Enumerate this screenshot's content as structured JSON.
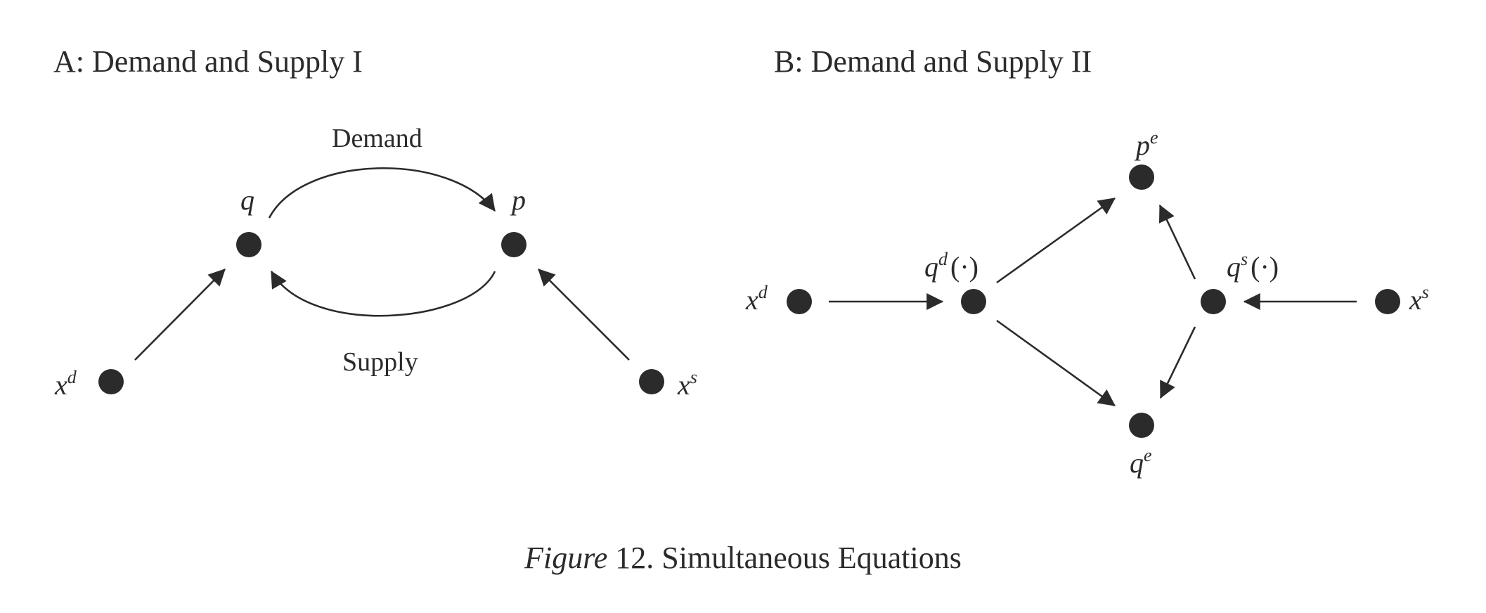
{
  "panel_a": {
    "title": "A: Demand and Supply I",
    "nodes": {
      "q": {
        "base": "q",
        "sup": ""
      },
      "p": {
        "base": "p",
        "sup": ""
      },
      "xd": {
        "base": "x",
        "sup": "d"
      },
      "xs": {
        "base": "x",
        "sup": "s"
      }
    },
    "edge_labels": {
      "demand": "Demand",
      "supply": "Supply"
    }
  },
  "panel_b": {
    "title": "B: Demand and Supply II",
    "nodes": {
      "xd": {
        "base": "x",
        "sup": "d"
      },
      "qd": {
        "base": "q",
        "sup": "d",
        "suffix": "(·)"
      },
      "pe": {
        "base": "p",
        "sup": "e"
      },
      "qe": {
        "base": "q",
        "sup": "e"
      },
      "qs": {
        "base": "q",
        "sup": "s",
        "suffix": "(·)"
      },
      "xs": {
        "base": "x",
        "sup": "s"
      }
    }
  },
  "caption": {
    "figure_word": "Figure",
    "text": " 12. Simultaneous Equations"
  },
  "colors": {
    "ink": "#2b2b2b",
    "background": "#ffffff"
  }
}
